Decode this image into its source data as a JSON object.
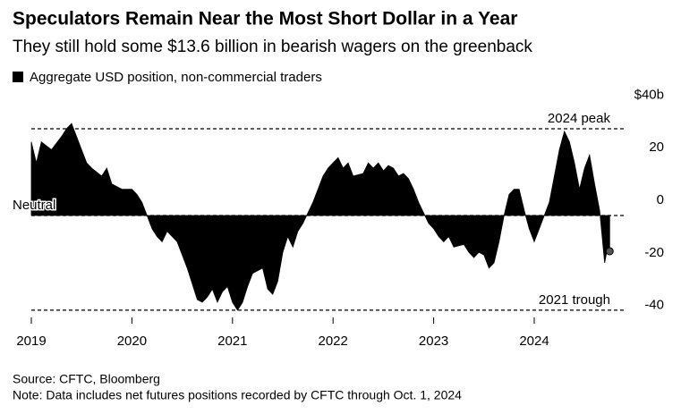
{
  "chart_data": {
    "type": "area",
    "title": "Speculators Remain Near the Most Short Dollar in a Year",
    "subtitle": "They still hold some $13.6 billion in bearish wagers on the greenback",
    "series": [
      {
        "name": "Aggregate USD position, non-commercial traders",
        "color": "#000000",
        "x": [
          2019.0,
          2019.05,
          2019.1,
          2019.2,
          2019.3,
          2019.35,
          2019.4,
          2019.45,
          2019.5,
          2019.55,
          2019.6,
          2019.7,
          2019.75,
          2019.8,
          2019.9,
          2020.0,
          2020.05,
          2020.1,
          2020.15,
          2020.2,
          2020.25,
          2020.3,
          2020.35,
          2020.4,
          2020.45,
          2020.5,
          2020.55,
          2020.6,
          2020.65,
          2020.7,
          2020.75,
          2020.8,
          2020.85,
          2020.9,
          2020.95,
          2021.0,
          2021.05,
          2021.1,
          2021.15,
          2021.2,
          2021.3,
          2021.35,
          2021.4,
          2021.45,
          2021.5,
          2021.55,
          2021.6,
          2021.65,
          2021.7,
          2021.8,
          2021.85,
          2021.9,
          2021.95,
          2022.0,
          2022.05,
          2022.1,
          2022.15,
          2022.2,
          2022.3,
          2022.35,
          2022.4,
          2022.45,
          2022.5,
          2022.55,
          2022.6,
          2022.65,
          2022.7,
          2022.75,
          2022.8,
          2022.85,
          2022.9,
          2022.95,
          2023.0,
          2023.05,
          2023.1,
          2023.15,
          2023.2,
          2023.3,
          2023.35,
          2023.4,
          2023.45,
          2023.5,
          2023.55,
          2023.6,
          2023.65,
          2023.7,
          2023.75,
          2023.8,
          2023.85,
          2023.9,
          2023.95,
          2024.0,
          2024.05,
          2024.1,
          2024.15,
          2024.2,
          2024.25,
          2024.3,
          2024.35,
          2024.4,
          2024.45,
          2024.5,
          2024.55,
          2024.6,
          2024.65,
          2024.7,
          2024.72,
          2024.75
        ],
        "values": [
          28,
          20,
          28,
          25,
          30,
          33,
          35,
          30,
          25,
          20,
          18,
          15,
          18,
          12,
          10,
          10,
          8,
          5,
          0,
          -5,
          -8,
          -10,
          -6,
          -8,
          -10,
          -15,
          -20,
          -26,
          -32,
          -33,
          -31,
          -28,
          -33,
          -29,
          -27,
          -33,
          -36,
          -33,
          -27,
          -22,
          -20,
          -28,
          -30,
          -25,
          -14,
          -8,
          -12,
          -6,
          -3,
          5,
          10,
          15,
          18,
          20,
          22,
          18,
          20,
          15,
          16,
          20,
          18,
          20,
          17,
          19,
          18,
          15,
          16,
          14,
          10,
          5,
          1,
          -3,
          -5,
          -8,
          -10,
          -8,
          -12,
          -11,
          -14,
          -16,
          -14,
          -15,
          -20,
          -18,
          -10,
          0,
          8,
          10,
          10,
          2,
          -5,
          -10,
          -5,
          0,
          5,
          15,
          25,
          32,
          28,
          20,
          10,
          18,
          23,
          12,
          2,
          -18,
          -14,
          -13.6
        ]
      }
    ],
    "xlim": [
      2019,
      2024.98
    ],
    "xticks": [
      2019,
      2020,
      2021,
      2022,
      2023,
      2024
    ],
    "ylim": [
      -42,
      42
    ],
    "yticks": [
      {
        "value": 40,
        "label": "$40b"
      },
      20,
      0,
      -20,
      -40
    ],
    "annotations": [
      {
        "label": "2024 peak",
        "value": 33
      },
      {
        "label": "Neutral",
        "value": 0
      },
      {
        "label": "2021 trough",
        "value": -36
      }
    ],
    "source": "Source: CFTC, Bloomberg",
    "note": "Note: Data includes net futures positions recorded by CFTC through Oct. 1, 2024"
  }
}
